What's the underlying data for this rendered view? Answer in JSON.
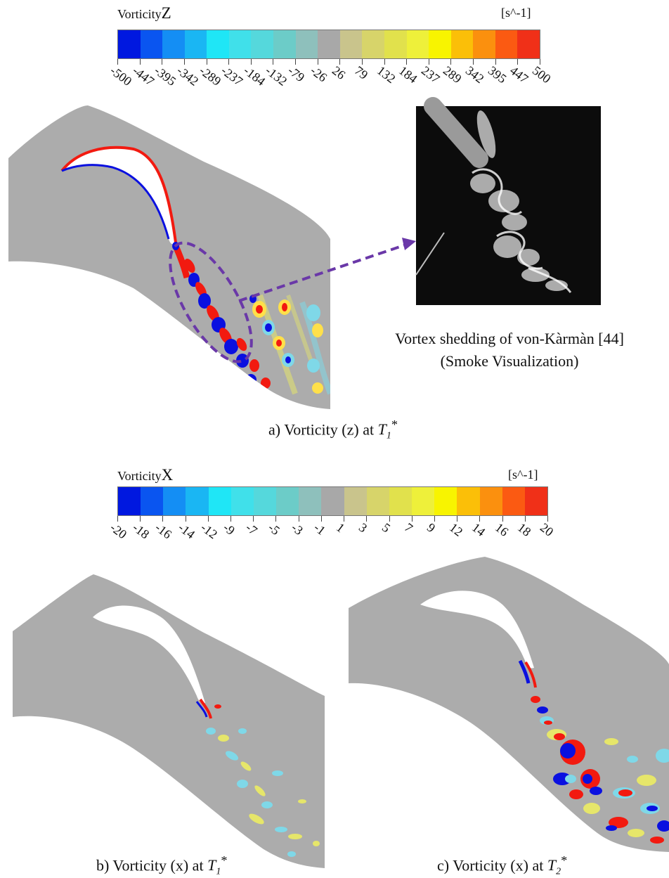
{
  "panel_a": {
    "colorbar": {
      "title_word": "Vorticity",
      "title_axis": "Z",
      "unit": "[s^-1]",
      "ticks": [
        "-500",
        "-447",
        "-395",
        "-342",
        "-289",
        "-237",
        "-184",
        "-132",
        "-79",
        "-26",
        "26",
        "79",
        "132",
        "184",
        "237",
        "289",
        "342",
        "395",
        "447",
        "500"
      ],
      "colors": [
        "#0018e0",
        "#0a55f0",
        "#148ef4",
        "#1ab6f3",
        "#1fe6f6",
        "#40e0ea",
        "#55d8dc",
        "#6cccc8",
        "#8ec0bc",
        "#a8a8a8",
        "#c9c48c",
        "#d7d46a",
        "#e1e14c",
        "#eef03a",
        "#f8f400",
        "#fbbf08",
        "#fb900e",
        "#fb5a12",
        "#f03018"
      ]
    },
    "caption_prefix": "a)   Vorticity (z) at ",
    "caption_T": "T",
    "caption_sub": "1",
    "caption_sup": "*",
    "smoke_caption_line1": "Vortex shedding of von-Kàrmàn [44]",
    "smoke_caption_line2": "(Smoke Visualization)"
  },
  "panel_bc": {
    "colorbar": {
      "title_word": "Vorticity",
      "title_axis": "X",
      "unit": "[s^-1]",
      "ticks": [
        "-20",
        "-18",
        "-16",
        "-14",
        "-12",
        "-9",
        "-7",
        "-5",
        "-3",
        "-1",
        "1",
        "3",
        "5",
        "7",
        "9",
        "12",
        "14",
        "16",
        "18",
        "20"
      ],
      "colors": [
        "#0018e0",
        "#0a55f0",
        "#148ef4",
        "#1ab6f3",
        "#1fe6f6",
        "#40e0ea",
        "#55d8dc",
        "#6cccc8",
        "#8ec0bc",
        "#a8a8a8",
        "#c9c48c",
        "#d7d46a",
        "#e1e14c",
        "#eef03a",
        "#f8f400",
        "#fbbf08",
        "#fb900e",
        "#fb5a12",
        "#f03018"
      ]
    },
    "caption_b_prefix": "b)   Vorticity (x) at ",
    "caption_b_T": "T",
    "caption_b_sub": "1",
    "caption_b_sup": "*",
    "caption_c_prefix": "c)   Vorticity (x) at ",
    "caption_c_T": "T",
    "caption_c_sub": "2",
    "caption_c_sup": "*"
  },
  "colors": {
    "domain_gray": "#acacac",
    "pos_vortex": "#f21a10",
    "neg_vortex": "#0a10e0",
    "annotation_purple": "#6a38a8",
    "smoke_bg": "#0c0c0c"
  }
}
